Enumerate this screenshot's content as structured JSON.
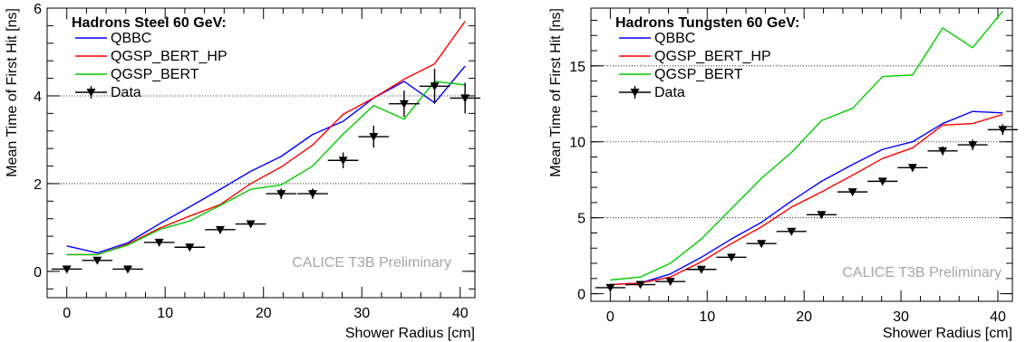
{
  "chart_data": [
    {
      "type": "line",
      "title": "Hadrons Steel 60 GeV:",
      "xlabel": "Shower Radius [cm]",
      "ylabel": "Mean Time of First Hit [ns]",
      "watermark": "CALICE T3B Preliminary",
      "xlim": [
        -2,
        41.5
      ],
      "ylim": [
        -0.6,
        6
      ],
      "xticks": [
        "0",
        "10",
        "20",
        "30",
        "40"
      ],
      "yticks": [
        "0",
        "2",
        "4",
        "6"
      ],
      "grid_y": [
        2,
        4
      ],
      "legend_position": "top-left",
      "series": [
        {
          "name": "QBBC",
          "color": "#0000ff",
          "x": [
            0,
            3.1,
            6.2,
            9.4,
            12.5,
            15.6,
            18.7,
            21.8,
            25,
            28.1,
            31.2,
            34.3,
            37.4,
            40.5
          ],
          "y": [
            0.58,
            0.42,
            0.65,
            1.08,
            1.47,
            1.87,
            2.28,
            2.62,
            3.12,
            3.42,
            3.95,
            4.33,
            3.84,
            4.68
          ]
        },
        {
          "name": "QGSP_BERT_HP",
          "color": "#ff0000",
          "x": [
            0,
            3.1,
            6.2,
            9.4,
            12.5,
            15.6,
            18.7,
            21.8,
            25,
            28.1,
            31.2,
            34.3,
            37.4,
            40.5
          ],
          "y": [
            0.38,
            0.38,
            0.62,
            0.98,
            1.26,
            1.52,
            2.0,
            2.38,
            2.88,
            3.58,
            3.95,
            4.38,
            4.73,
            5.7
          ]
        },
        {
          "name": "QGSP_BERT",
          "color": "#00cc00",
          "x": [
            0,
            3.1,
            6.2,
            9.4,
            12.5,
            15.6,
            18.7,
            21.8,
            25,
            28.1,
            31.2,
            34.3,
            37.4,
            40.5
          ],
          "y": [
            0.38,
            0.38,
            0.6,
            0.95,
            1.15,
            1.5,
            1.87,
            1.97,
            2.4,
            3.13,
            3.78,
            3.47,
            4.33,
            4.25
          ]
        },
        {
          "name": "Data",
          "color": "#000000",
          "marker": "triangle-down",
          "x": [
            0,
            3.1,
            6.2,
            9.4,
            12.5,
            15.6,
            18.7,
            21.8,
            25,
            28.1,
            31.2,
            34.3,
            37.4,
            40.5
          ],
          "y": [
            0.05,
            0.25,
            0.05,
            0.66,
            0.55,
            0.95,
            1.08,
            1.77,
            1.77,
            2.53,
            3.07,
            3.82,
            4.22,
            3.95
          ],
          "y_err": [
            0.04,
            0.08,
            0.04,
            0.08,
            0.08,
            0.08,
            0.08,
            0.12,
            0.12,
            0.18,
            0.25,
            0.3,
            0.4,
            0.35
          ],
          "x_err": 1.55
        }
      ]
    },
    {
      "type": "line",
      "title": "Hadrons Tungsten 60 GeV:",
      "xlabel": "Shower Radius [cm]",
      "ylabel": "Mean Time of First Hit [ns]",
      "watermark": "CALICE T3B Preliminary",
      "xlim": [
        -2,
        41.5
      ],
      "ylim": [
        -0.5,
        18.8
      ],
      "xticks": [
        "0",
        "10",
        "20",
        "30",
        "40"
      ],
      "yticks": [
        "0",
        "5",
        "10",
        "15"
      ],
      "grid_y": [
        5,
        10,
        15
      ],
      "legend_position": "top-left",
      "series": [
        {
          "name": "QBBC",
          "color": "#0000ff",
          "x": [
            0,
            3.1,
            6.2,
            9.4,
            12.5,
            15.6,
            18.7,
            21.8,
            25,
            28.1,
            31.2,
            34.3,
            37.4,
            40.5
          ],
          "y": [
            0.6,
            0.7,
            1.3,
            2.4,
            3.6,
            4.7,
            6.1,
            7.4,
            8.5,
            9.5,
            10.0,
            11.2,
            12.0,
            11.9
          ]
        },
        {
          "name": "QGSP_BERT_HP",
          "color": "#ff0000",
          "x": [
            0,
            3.1,
            6.2,
            9.4,
            12.5,
            15.6,
            18.7,
            21.8,
            25,
            28.1,
            31.2,
            34.3,
            37.4,
            40.5
          ],
          "y": [
            0.6,
            0.7,
            1.1,
            2.1,
            3.3,
            4.4,
            5.7,
            6.7,
            7.8,
            8.9,
            9.6,
            11.1,
            11.2,
            11.8
          ]
        },
        {
          "name": "QGSP_BERT",
          "color": "#00cc00",
          "x": [
            0,
            3.1,
            6.2,
            9.4,
            12.5,
            15.6,
            18.7,
            21.8,
            25,
            28.1,
            31.2,
            34.3,
            37.4,
            40.5
          ],
          "y": [
            0.9,
            1.1,
            2.0,
            3.6,
            5.6,
            7.6,
            9.3,
            11.4,
            12.2,
            14.3,
            14.4,
            17.5,
            16.2,
            18.6
          ]
        },
        {
          "name": "Data",
          "color": "#000000",
          "marker": "triangle-down",
          "x": [
            0,
            3.1,
            6.2,
            9.4,
            12.5,
            15.6,
            18.7,
            21.8,
            25,
            28.1,
            31.2,
            34.3,
            37.4,
            40.5
          ],
          "y": [
            0.4,
            0.6,
            0.8,
            1.6,
            2.4,
            3.3,
            4.1,
            5.2,
            6.7,
            7.4,
            8.3,
            9.4,
            9.8,
            10.8
          ],
          "y_err": [
            0.1,
            0.1,
            0.1,
            0.12,
            0.12,
            0.15,
            0.15,
            0.2,
            0.2,
            0.2,
            0.25,
            0.3,
            0.35,
            0.35
          ],
          "x_err": 1.55
        }
      ]
    }
  ]
}
